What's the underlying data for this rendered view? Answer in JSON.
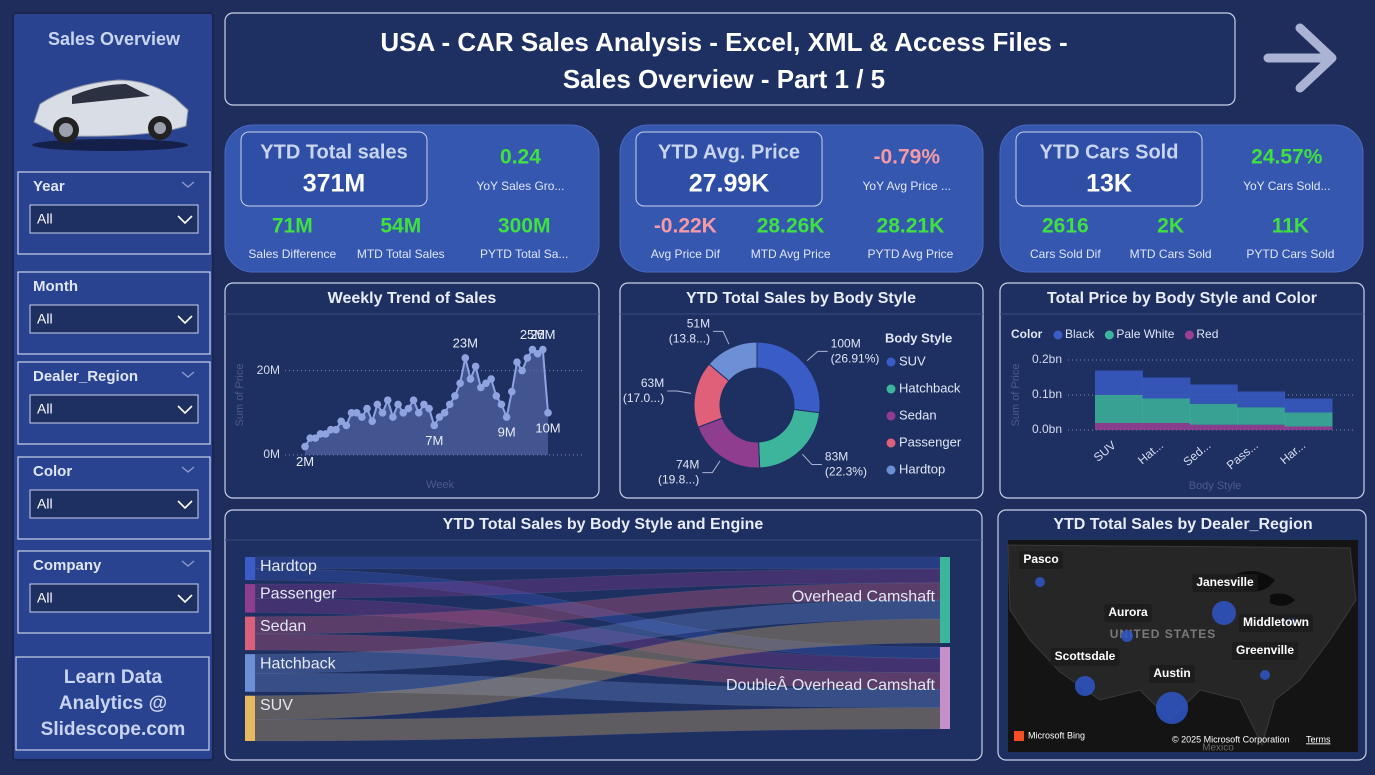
{
  "sidebar": {
    "title": "Sales Overview",
    "filters": [
      {
        "label": "Year",
        "value": "All"
      },
      {
        "label": "Month",
        "value": "All"
      },
      {
        "label": "Dealer_Region",
        "value": "All"
      },
      {
        "label": "Color",
        "value": "All"
      },
      {
        "label": "Company",
        "value": "All"
      }
    ],
    "footer": [
      "Learn Data",
      "Analytics @",
      "Slidescope.com"
    ]
  },
  "header": {
    "title_lines": [
      "USA - CAR Sales Analysis - Excel, XML & Access Files -",
      "Sales Overview - Part 1 / 5"
    ]
  },
  "kpis": [
    {
      "title": "YTD Total sales",
      "value": "371M",
      "metrics": [
        {
          "value": "0.24",
          "label": "YoY Sales Gro...",
          "color": "#3fe03f"
        },
        {
          "value": "71M",
          "label": "Sales Difference",
          "color": "#3fe03f"
        },
        {
          "value": "54M",
          "label": "MTD Total Sales",
          "color": "#3fe03f"
        },
        {
          "value": "300M",
          "label": "PYTD Total Sa...",
          "color": "#3fe03f"
        }
      ]
    },
    {
      "title": "YTD Avg. Price",
      "value": "27.99K",
      "metrics": [
        {
          "value": "-0.79%",
          "label": "YoY Avg Price ...",
          "color": "#f49aa6"
        },
        {
          "value": "-0.22K",
          "label": "Avg Price Dif",
          "color": "#f49aa6"
        },
        {
          "value": "28.26K",
          "label": "MTD Avg Price",
          "color": "#3fe03f"
        },
        {
          "value": "28.21K",
          "label": "PYTD Avg Price",
          "color": "#3fe03f"
        }
      ]
    },
    {
      "title": "YTD Cars Sold",
      "value": "13K",
      "metrics": [
        {
          "value": "24.57%",
          "label": "YoY Cars Sold...",
          "color": "#3fe03f"
        },
        {
          "value": "2616",
          "label": "Cars Sold Dif",
          "color": "#3fe03f"
        },
        {
          "value": "2K",
          "label": "MTD Cars Sold",
          "color": "#3fe03f"
        },
        {
          "value": "11K",
          "label": "PYTD Cars Sold",
          "color": "#3fe03f"
        }
      ]
    }
  ],
  "weekly": {
    "type": "line",
    "title": "Weekly Trend of Sales",
    "x_label": "Week",
    "y_label": "Sum of Price",
    "color": "#8fa3e0",
    "values": [
      2,
      4,
      4,
      5,
      5,
      6,
      6,
      8,
      7,
      10,
      10,
      9,
      11,
      8,
      12,
      10,
      13,
      9,
      12,
      10,
      11,
      13,
      10,
      12,
      11,
      7,
      9,
      10,
      12,
      14,
      17,
      23,
      18,
      21,
      16,
      17,
      18,
      14,
      12,
      9,
      15,
      22,
      20,
      23,
      25,
      24,
      25,
      10
    ],
    "value_labels": [
      "2M",
      null,
      null,
      null,
      null,
      null,
      null,
      null,
      null,
      null,
      null,
      null,
      null,
      null,
      null,
      null,
      null,
      null,
      null,
      null,
      null,
      null,
      null,
      null,
      null,
      "7M",
      null,
      null,
      null,
      null,
      null,
      "23M",
      null,
      null,
      null,
      null,
      null,
      null,
      null,
      "9M",
      null,
      null,
      null,
      null,
      "25M",
      null,
      "25M",
      "10M"
    ],
    "ylim": [
      0,
      32
    ],
    "yticks": [
      {
        "value": 0,
        "label": "0M"
      },
      {
        "value": 20,
        "label": "20M"
      }
    ],
    "grid": true
  },
  "donut": {
    "type": "pie",
    "title": "YTD Total Sales by Body Style",
    "legend_title": "Body Style",
    "categories": [
      "SUV",
      "Hatchback",
      "Sedan",
      "Passenger",
      "Hardtop"
    ],
    "values": [
      100,
      83,
      74,
      63,
      51
    ],
    "value_labels": [
      "100M (26.91%)",
      "83M (22.3%)",
      "74M (19.8...)",
      "63M (17.0...)",
      "51M (13.8...)"
    ],
    "colors": [
      "#3a5cc6",
      "#3db59c",
      "#8e3d8f",
      "#e0607a",
      "#6d8fd6"
    ]
  },
  "stacked": {
    "type": "area",
    "title": "Total Price by Body Style and Color",
    "legend_title": "Color",
    "x_label": "Body Style",
    "y_label": "Sum of Price",
    "categories": [
      "SUV",
      "Hat...",
      "Sed...",
      "Pass...",
      "Har..."
    ],
    "series": [
      {
        "name": "Black",
        "color": "#3a5cc6",
        "values": [
          0.07,
          0.06,
          0.055,
          0.045,
          0.04
        ]
      },
      {
        "name": "Pale White",
        "color": "#3db59c",
        "values": [
          0.08,
          0.07,
          0.06,
          0.05,
          0.04
        ]
      },
      {
        "name": "Red",
        "color": "#9c3f95",
        "values": [
          0.02,
          0.02,
          0.015,
          0.015,
          0.01
        ]
      }
    ],
    "ylim": [
      0,
      0.2
    ],
    "yticks": [
      {
        "value": 0,
        "label": "0.0bn"
      },
      {
        "value": 0.1,
        "label": "0.1bn"
      },
      {
        "value": 0.2,
        "label": "0.2bn"
      }
    ],
    "grid": true
  },
  "sankey": {
    "type": "sankey",
    "title": "YTD Total Sales by Body Style and Engine",
    "sources": [
      {
        "name": "Hardtop",
        "color": "#3a5cc6"
      },
      {
        "name": "Passenger",
        "color": "#8e3d8f"
      },
      {
        "name": "Sedan",
        "color": "#d9607a"
      },
      {
        "name": "Hatchback",
        "color": "#6d8fd6"
      },
      {
        "name": "SUV",
        "color": "#e6b860"
      }
    ],
    "targets": [
      {
        "name": "Overhead Camshaft",
        "color": "#3db59c"
      },
      {
        "name": "DoubleÂ Overhead Camshaft",
        "color": "#c78fc8"
      }
    ],
    "links": [
      {
        "source": "Hardtop",
        "target": "Overhead Camshaft",
        "value": 26
      },
      {
        "source": "Hardtop",
        "target": "DoubleÂ Overhead Camshaft",
        "value": 25
      },
      {
        "source": "Passenger",
        "target": "Overhead Camshaft",
        "value": 31
      },
      {
        "source": "Passenger",
        "target": "DoubleÂ Overhead Camshaft",
        "value": 32
      },
      {
        "source": "Sedan",
        "target": "Overhead Camshaft",
        "value": 38
      },
      {
        "source": "Sedan",
        "target": "DoubleÂ Overhead Camshaft",
        "value": 36
      },
      {
        "source": "Hatchback",
        "target": "Overhead Camshaft",
        "value": 42
      },
      {
        "source": "Hatchback",
        "target": "DoubleÂ Overhead Camshaft",
        "value": 41
      },
      {
        "source": "SUV",
        "target": "Overhead Camshaft",
        "value": 53
      },
      {
        "source": "SUV",
        "target": "DoubleÂ Overhead Camshaft",
        "value": 47
      }
    ]
  },
  "map": {
    "type": "map",
    "title": "YTD Total Sales by Dealer_Region",
    "country": "UNITED STATES",
    "neighbor": "Mexico",
    "color": "#2f55c8",
    "cities": [
      "Pasco",
      "Janesville",
      "Aurora",
      "Middletown",
      "Scottsdale",
      "Greenville",
      "Austin"
    ],
    "values": [
      7,
      40,
      10,
      5,
      28,
      7,
      72
    ],
    "credits": {
      "provider": "Microsoft Bing",
      "copyright": "© 2025 Microsoft Corporation",
      "terms": "Terms"
    }
  }
}
